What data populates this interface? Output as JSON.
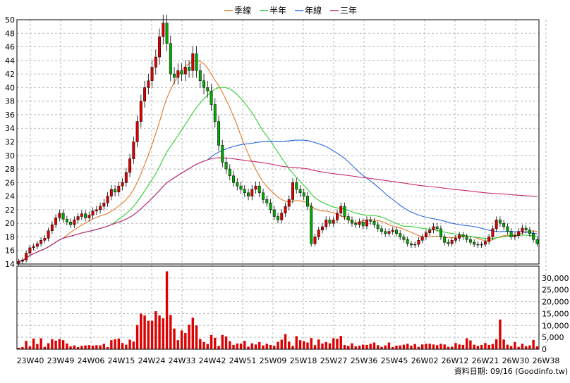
{
  "legend": [
    {
      "label": "季線",
      "color": "#e07a2a"
    },
    {
      "label": "半年",
      "color": "#33cc33"
    },
    {
      "label": "年線",
      "color": "#2a6ae0"
    },
    {
      "label": "三年",
      "color": "#c8286e"
    }
  ],
  "footer": "資料日期: 09/16 (Goodinfo.tw)",
  "colors": {
    "up": "#dd0000",
    "down": "#00aa00",
    "volume": "#dd0000",
    "grid": "#999999",
    "frame": "#000000"
  },
  "chart_data": {
    "type": "candlestick",
    "price_axis": {
      "min": 14,
      "max": 50,
      "step": 2,
      "ticks": [
        "14",
        "16",
        "18",
        "20",
        "22",
        "24",
        "26",
        "28",
        "30",
        "32",
        "34",
        "36",
        "38",
        "40",
        "42",
        "44",
        "46",
        "48",
        "50"
      ]
    },
    "volume_axis": {
      "min": 0,
      "max": 35000,
      "ticks": [
        "0",
        "5,000",
        "10,000",
        "15,000",
        "20,000",
        "25,000",
        "30,000"
      ]
    },
    "x_tick_labels": [
      "23W40",
      "23W49",
      "24W06",
      "24W15",
      "24W24",
      "24W33",
      "24W42",
      "24W51",
      "25W09",
      "25W18",
      "25W27",
      "25W36",
      "25W45",
      "26W02",
      "26W12",
      "26W21",
      "26W30",
      "26W38"
    ],
    "closes": [
      14.4,
      14.6,
      15.6,
      16.4,
      16.6,
      17.0,
      17.5,
      17.8,
      18.9,
      19.8,
      20.8,
      21.5,
      20.6,
      20.2,
      19.8,
      20.5,
      21.0,
      21.4,
      20.8,
      21.2,
      21.8,
      22.0,
      22.5,
      23.0,
      24.0,
      25.0,
      24.6,
      25.5,
      26.0,
      27.5,
      29.5,
      32.0,
      35.0,
      38.0,
      40.0,
      41.0,
      43.0,
      44.5,
      47.5,
      49.5,
      46.5,
      42.0,
      41.5,
      42.5,
      42.0,
      43.0,
      42.5,
      45.0,
      42.5,
      41.0,
      40.0,
      39.5,
      37.5,
      35.0,
      31.5,
      29.0,
      28.0,
      27.0,
      26.0,
      25.5,
      25.0,
      24.5,
      24.0,
      25.0,
      25.5,
      24.5,
      23.5,
      23.0,
      22.0,
      21.0,
      20.5,
      21.5,
      22.5,
      23.5,
      26.0,
      25.0,
      24.5,
      24.0,
      22.5,
      17.0,
      18.0,
      19.0,
      19.5,
      20.5,
      20.0,
      20.5,
      21.5,
      22.5,
      21.0,
      20.5,
      20.0,
      19.8,
      20.2,
      19.6,
      20.5,
      20.3,
      19.8,
      19.2,
      18.8,
      18.5,
      18.8,
      19.0,
      18.5,
      18.0,
      17.6,
      17.0,
      16.8,
      16.9,
      17.5,
      18.0,
      18.6,
      19.0,
      19.5,
      19.2,
      18.0,
      17.2,
      17.0,
      17.5,
      17.8,
      18.3,
      18.0,
      17.6,
      17.2,
      16.9,
      16.8,
      16.9,
      17.3,
      18.0,
      19.2,
      20.5,
      20.0,
      19.5,
      18.8,
      18.0,
      18.2,
      18.8,
      19.3,
      19.0,
      18.5,
      17.6,
      17.0
    ],
    "volumes": [
      600,
      900,
      3500,
      1200,
      4500,
      2200,
      4600,
      1000,
      2500,
      4200,
      3600,
      4300,
      3800,
      2400,
      1200,
      1600,
      900,
      1400,
      1600,
      1700,
      1500,
      1700,
      1600,
      2300,
      900,
      3800,
      4200,
      4500,
      2600,
      1900,
      4000,
      3200,
      10200,
      15000,
      14200,
      12000,
      12000,
      16000,
      14200,
      13000,
      32800,
      14400,
      8700,
      3800,
      7900,
      6800,
      10300,
      13300,
      10000,
      4300,
      3000,
      2200,
      6000,
      4800,
      1400,
      6000,
      5400,
      3400,
      1800,
      2400,
      2400,
      3500,
      1100,
      2500,
      2000,
      3000,
      1600,
      2300,
      1800,
      1400,
      3100,
      4000,
      6400,
      3200,
      1400,
      5500,
      3800,
      3400,
      2800,
      4700,
      1700,
      4100,
      2400,
      3000,
      2500,
      4600,
      4400,
      5600,
      1800,
      1400,
      2500,
      1200,
      1500,
      1900,
      1800,
      2300,
      2800,
      1700,
      1000,
      1600,
      2800,
      900,
      1500,
      1600,
      1900,
      2300,
      1500,
      2200,
      1000,
      2000,
      2300,
      2300,
      2000,
      1700,
      2300,
      2000,
      1000,
      1100,
      2600,
      2000,
      1800,
      4600,
      3700,
      1900,
      1400,
      1800,
      2600,
      1800,
      2200,
      4200,
      12500,
      4100,
      1900,
      1300,
      3000,
      1000,
      2300,
      1300,
      1600,
      3900,
      1200,
      400
    ]
  }
}
